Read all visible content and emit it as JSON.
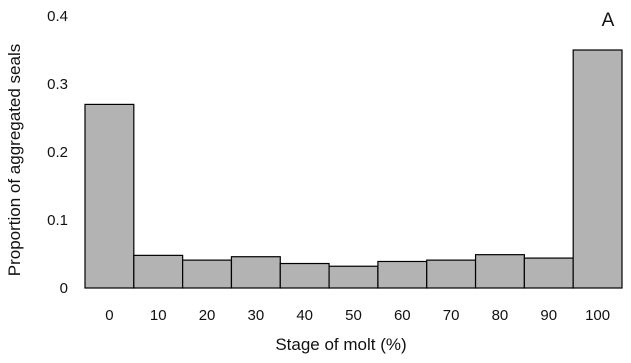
{
  "chart_data": {
    "type": "bar",
    "panel_label": "A",
    "xlabel": "Stage of molt (%)",
    "ylabel": "Proportion of aggregated seals",
    "categories": [
      "0",
      "10",
      "20",
      "30",
      "40",
      "50",
      "60",
      "70",
      "80",
      "90",
      "100"
    ],
    "values": [
      0.27,
      0.048,
      0.041,
      0.046,
      0.036,
      0.032,
      0.039,
      0.041,
      0.049,
      0.044,
      0.35
    ],
    "ylim": [
      0,
      0.4
    ],
    "yticks": [
      "0",
      "0.1",
      "0.2",
      "0.3",
      "0.4"
    ],
    "grid": false,
    "bar_color": "#b3b3b3",
    "bar_edge_color": "#000000"
  }
}
